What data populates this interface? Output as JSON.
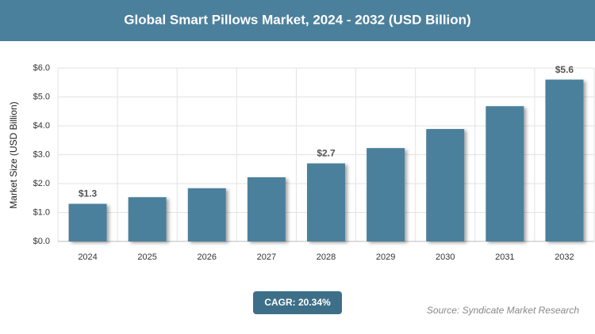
{
  "chart_data": {
    "type": "bar",
    "title": "Global Smart Pillows Market, 2024 - 2032 (USD Billion)",
    "y_label": "Market Size (USD Billion)",
    "categories": [
      "2024",
      "2025",
      "2026",
      "2027",
      "2028",
      "2029",
      "2030",
      "2031",
      "2032"
    ],
    "values": [
      1.3,
      1.53,
      1.84,
      2.22,
      2.7,
      3.23,
      3.89,
      4.68,
      5.6
    ],
    "value_labels": [
      "$1.3",
      null,
      null,
      null,
      "$2.7",
      null,
      null,
      null,
      "$5.6"
    ],
    "color": "#4b809c",
    "ylim": [
      0,
      6
    ],
    "yticks": [
      {
        "value": 0,
        "label": "$0.0"
      },
      {
        "value": 1,
        "label": "$1.0"
      },
      {
        "value": 2,
        "label": "$2.0"
      },
      {
        "value": 3,
        "label": "$3.0"
      },
      {
        "value": 4,
        "label": "$4.0"
      },
      {
        "value": 5,
        "label": "$5.0"
      },
      {
        "value": 6,
        "label": "$6.0"
      }
    ],
    "grid": true,
    "cagr": "CAGR: 20.34%",
    "source": "Source: Syndicate Market Research"
  }
}
